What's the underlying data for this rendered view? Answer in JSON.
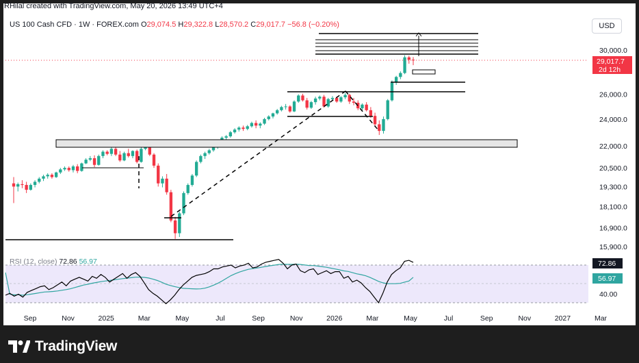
{
  "header": {
    "credit": "RHilal created with TradingView.com, May 20, 2026 13:49 UTC+4"
  },
  "legend": {
    "symbol": "US 100 Cash CFD · 1W · FOREX.com",
    "open_label": "O",
    "open": "29,074.5",
    "high_label": "H",
    "high": "29,322.8",
    "low_label": "L",
    "low": "28,570.2",
    "close_label": "C",
    "close": "29,017.7",
    "change": "−56.8 (−0.20%)"
  },
  "currency_button": "USD",
  "rsi_legend": {
    "label": "RSI (12, close)",
    "value1": "72.86",
    "value2": "56.97"
  },
  "price_badge": {
    "price": "29,017.7",
    "countdown": "2d 12h"
  },
  "rsi_badges": {
    "rsi": "72.86",
    "ma": "56.97"
  },
  "rsi_axis_label": "40.00",
  "footer": {
    "brand": "TradingView"
  },
  "colors": {
    "up": "#22ab94",
    "down": "#f23645",
    "rsi": "#000000",
    "rsi_ma": "#2fa5a0",
    "rsi_band": "#ede8fb"
  },
  "chart_data": {
    "type": "candlestick",
    "price_axis": {
      "ticks": [
        "30,000.0",
        "26,000.0",
        "24,000.0",
        "22,000.0",
        "20,500.0",
        "19,300.0",
        "18,100.0",
        "16,900.0",
        "15,900.0"
      ],
      "scale": "log"
    },
    "time_axis": {
      "ticks": [
        "Sep",
        "Nov",
        "2025",
        "Mar",
        "May",
        "Jul",
        "Sep",
        "Nov",
        "2026",
        "Mar",
        "May",
        "Jul",
        "Sep",
        "Nov",
        "2027",
        "Mar"
      ]
    },
    "candles": [
      [
        19500,
        19900,
        18300,
        19300
      ],
      [
        19300,
        19550,
        19000,
        19450
      ],
      [
        19450,
        19700,
        19200,
        19400
      ],
      [
        19400,
        19600,
        18900,
        19100
      ],
      [
        19100,
        19500,
        19050,
        19400
      ],
      [
        19400,
        19700,
        19250,
        19600
      ],
      [
        19600,
        19900,
        19500,
        19800
      ],
      [
        19800,
        20050,
        19650,
        19950
      ],
      [
        19950,
        20150,
        19800,
        20050
      ],
      [
        20050,
        20150,
        19800,
        19900
      ],
      [
        19900,
        20250,
        19850,
        20200
      ],
      [
        20200,
        20500,
        20100,
        20400
      ],
      [
        20400,
        20600,
        20300,
        20500
      ],
      [
        20500,
        20600,
        20250,
        20350
      ],
      [
        20350,
        20700,
        20200,
        20600
      ],
      [
        20600,
        20750,
        20150,
        20300
      ],
      [
        20300,
        20850,
        20250,
        20800
      ],
      [
        20800,
        21150,
        20750,
        21050
      ],
      [
        21050,
        21300,
        20950,
        21150
      ],
      [
        21150,
        21350,
        20550,
        20700
      ],
      [
        20700,
        21400,
        20650,
        21300
      ],
      [
        21300,
        21700,
        21150,
        21600
      ],
      [
        21600,
        21700,
        21350,
        21450
      ],
      [
        21450,
        21900,
        21300,
        21800
      ],
      [
        21800,
        21950,
        21300,
        21400
      ],
      [
        21400,
        21650,
        20900,
        21000
      ],
      [
        21000,
        21600,
        20950,
        21500
      ],
      [
        21500,
        21800,
        21200,
        21300
      ],
      [
        21300,
        21700,
        21150,
        21650
      ],
      [
        21650,
        21750,
        20800,
        20900
      ],
      [
        20900,
        21900,
        20850,
        21800
      ],
      [
        21800,
        22100,
        21700,
        21950
      ],
      [
        21950,
        22050,
        21300,
        21400
      ],
      [
        21400,
        21500,
        20500,
        20650
      ],
      [
        20650,
        20800,
        19300,
        19500
      ],
      [
        19500,
        19950,
        19250,
        19800
      ],
      [
        19800,
        20100,
        18800,
        18950
      ],
      [
        18950,
        19100,
        17200,
        17300
      ],
      [
        17300,
        17500,
        16300,
        16600
      ],
      [
        16600,
        17800,
        16400,
        17700
      ],
      [
        17700,
        19000,
        17600,
        18900
      ],
      [
        18900,
        19500,
        18800,
        19400
      ],
      [
        19400,
        20100,
        19300,
        20000
      ],
      [
        20000,
        21000,
        19900,
        20900
      ],
      [
        20900,
        21400,
        20800,
        21300
      ],
      [
        21300,
        21600,
        21100,
        21500
      ],
      [
        21500,
        21800,
        21400,
        21700
      ],
      [
        21700,
        22000,
        21600,
        21900
      ],
      [
        21900,
        22250,
        21800,
        22150
      ],
      [
        22150,
        22700,
        22050,
        22600
      ],
      [
        22600,
        22800,
        22400,
        22700
      ],
      [
        22700,
        23100,
        22600,
        23000
      ],
      [
        23000,
        23300,
        22900,
        23200
      ],
      [
        23200,
        23450,
        23050,
        23350
      ],
      [
        23350,
        23500,
        23100,
        23250
      ],
      [
        23250,
        23550,
        23150,
        23450
      ],
      [
        23450,
        23800,
        23350,
        23700
      ],
      [
        23700,
        23900,
        23300,
        23500
      ],
      [
        23500,
        23750,
        23300,
        23650
      ],
      [
        23650,
        24100,
        23550,
        24000
      ],
      [
        24000,
        24300,
        23900,
        24200
      ],
      [
        24200,
        24500,
        24050,
        24450
      ],
      [
        24450,
        24800,
        24350,
        24700
      ],
      [
        24700,
        25050,
        24600,
        24950
      ],
      [
        24950,
        25200,
        24750,
        25000
      ],
      [
        25000,
        25100,
        24500,
        24600
      ],
      [
        24600,
        25500,
        24550,
        25400
      ],
      [
        25400,
        26000,
        25300,
        25900
      ],
      [
        25900,
        26050,
        25400,
        25500
      ],
      [
        25500,
        25700,
        24750,
        24900
      ],
      [
        24900,
        25450,
        24800,
        25350
      ],
      [
        25350,
        25800,
        25150,
        25650
      ],
      [
        25650,
        25900,
        25500,
        25800
      ],
      [
        25800,
        25950,
        24900,
        25000
      ],
      [
        25000,
        25700,
        24900,
        25600
      ],
      [
        25600,
        25850,
        25450,
        25700
      ],
      [
        25700,
        25800,
        25300,
        25400
      ],
      [
        25400,
        25850,
        25300,
        25750
      ],
      [
        25750,
        26100,
        25600,
        25950
      ],
      [
        25950,
        26050,
        25200,
        25400
      ],
      [
        25400,
        25700,
        25100,
        25300
      ],
      [
        25300,
        25500,
        24700,
        24850
      ],
      [
        24850,
        25250,
        24700,
        25150
      ],
      [
        25150,
        25350,
        24600,
        24700
      ],
      [
        24700,
        24950,
        24100,
        24250
      ],
      [
        24250,
        24500,
        23400,
        23600
      ],
      [
        23600,
        23900,
        22800,
        23100
      ],
      [
        23100,
        24200,
        22900,
        24000
      ],
      [
        24000,
        25600,
        23900,
        25500
      ],
      [
        25500,
        27200,
        25400,
        27000
      ],
      [
        27000,
        27600,
        26800,
        27500
      ],
      [
        27500,
        28000,
        27300,
        27850
      ],
      [
        27850,
        29500,
        27750,
        29300
      ],
      [
        29300,
        29450,
        28700,
        29074
      ],
      [
        29074,
        29323,
        28570,
        29018
      ]
    ],
    "rsi": [
      38,
      40,
      37,
      39,
      36,
      41,
      43,
      45,
      47,
      48,
      44,
      46,
      49,
      52,
      48,
      53,
      55,
      57,
      55,
      53,
      58,
      56,
      60,
      57,
      52,
      55,
      58,
      61,
      56,
      60,
      62,
      58,
      51,
      44,
      40,
      37,
      33,
      29,
      33,
      38,
      44,
      49,
      53,
      57,
      59,
      60,
      61,
      63,
      66,
      66,
      68,
      69,
      70,
      67,
      69,
      70,
      72,
      67,
      68,
      71,
      73,
      74,
      75,
      76,
      72,
      66,
      70,
      71,
      64,
      62,
      65,
      66,
      60,
      62,
      64,
      61,
      63,
      63,
      56,
      58,
      52,
      54,
      51,
      46,
      42,
      36,
      30,
      40,
      52,
      60,
      64,
      67,
      74,
      75,
      72.86
    ],
    "rsi_ma_start": 62,
    "rsi_ma_end": 56.97
  }
}
